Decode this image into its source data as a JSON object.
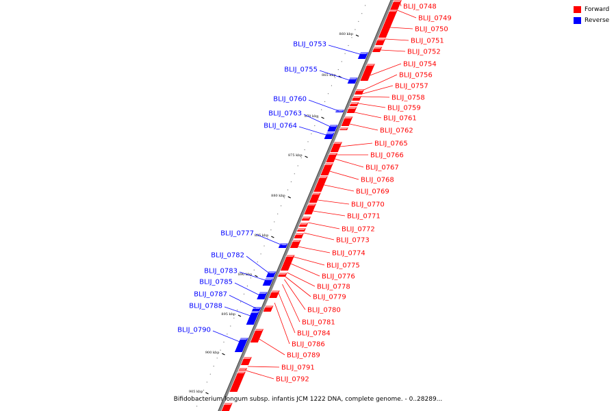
{
  "colors": {
    "forward": "#ff0000",
    "reverse": "#0000ff",
    "backbone": "#888888",
    "tick": "#000000"
  },
  "legend": [
    {
      "label": "Forward",
      "color": "#ff0000"
    },
    {
      "label": "Reverse",
      "color": "#0000ff"
    }
  ],
  "caption": "Bifidobacterium longum subsp. infantis JCM 1222 DNA, complete genome. - 0..28289...",
  "ticks": [
    "860 kbp",
    "865 kbp",
    "870 kbp",
    "875 kbp",
    "880 kbp",
    "885 kbp",
    "890 kbp",
    "895 kbp",
    "900 kbp",
    "905 kbp"
  ],
  "forward_genes": [
    "BLIJ_0748",
    "BLIJ_0749",
    "BLIJ_0750",
    "BLIJ_0751",
    "BLIJ_0752",
    "BLIJ_0754",
    "BLIJ_0756",
    "BLIJ_0757",
    "BLIJ_0758",
    "BLIJ_0759",
    "BLIJ_0761",
    "BLIJ_0762",
    "BLIJ_0765",
    "BLIJ_0766",
    "BLIJ_0767",
    "BLIJ_0768",
    "BLIJ_0769",
    "BLIJ_0770",
    "BLIJ_0771",
    "BLIJ_0772",
    "BLIJ_0773",
    "BLIJ_0774",
    "BLIJ_0775",
    "BLIJ_0776",
    "BLIJ_0778",
    "BLIJ_0779",
    "BLIJ_0780",
    "BLIJ_0781",
    "BLIJ_0784",
    "BLIJ_0786",
    "BLIJ_0789",
    "BLIJ_0791",
    "BLIJ_0792"
  ],
  "reverse_genes": [
    "BLIJ_0753",
    "BLIJ_0755",
    "BLIJ_0760",
    "BLIJ_0763",
    "BLIJ_0764",
    "BLIJ_0777",
    "BLIJ_0782",
    "BLIJ_0783",
    "BLIJ_0785",
    "BLIJ_0787",
    "BLIJ_0788",
    "BLIJ_0790"
  ]
}
